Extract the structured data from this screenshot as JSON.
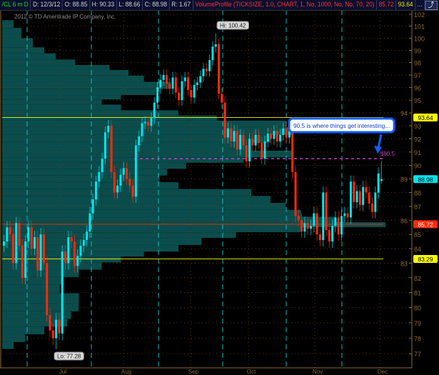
{
  "header": {
    "symbol": "/CL 6 m D",
    "date": "D: 12/3/12",
    "open": "O: 88.85",
    "high": "H: 90.33",
    "low": "L: 88.66",
    "close": "C: 88.98",
    "range": "R: 1.67",
    "study": "VolumeProfile (TICKSIZE, 1.0, CHART, 1, No, 1000, No, No, 70, 20)",
    "poc": "85.72",
    "va_high": "93.64",
    "more": "...",
    "style_icon": "chart-style-icon"
  },
  "copyright": "2012 © TD Ameritrade IP Company, Inc.",
  "annotation": {
    "callout": "90.5 is where things get interesting...",
    "level_label": "$90.5"
  },
  "colors": {
    "up": "#00e5ee",
    "down": "#ff2a0a",
    "profile": "#0c5656",
    "va_line": "#d8d800",
    "poc_line": "#e03010",
    "level_line": "#c040c0",
    "callout_border": "#1060ff",
    "grid": "#5a3a10",
    "axis": "#8a6a30"
  },
  "chart_data": {
    "type": "candlestick",
    "title": "",
    "y_scale": "log",
    "ylim": [
      76.7,
      102.3
    ],
    "y_ticks": [
      77,
      78,
      79,
      80,
      81,
      82,
      83,
      84,
      85,
      86,
      87,
      88,
      89,
      90,
      91,
      92,
      93,
      94,
      95,
      96,
      97,
      98,
      99,
      100,
      101,
      102
    ],
    "x_ticks": [
      "Jul",
      "Aug",
      "Sep",
      "Oct",
      "Nov",
      "Dec"
    ],
    "grid": true,
    "open": [
      84.2,
      84.5,
      85.5,
      85,
      83,
      85.8,
      84.2,
      82,
      84.5,
      85.5,
      84,
      84.8,
      82.5,
      85,
      83,
      79.5,
      78.5,
      78,
      79.2,
      78.3,
      83.8,
      83,
      84.8,
      84.5,
      82.8,
      83.5,
      84.2,
      84.6,
      85.2,
      86.5,
      87.5,
      88.8,
      89.5,
      90.5,
      92.5,
      93,
      89.5,
      88,
      88.5,
      89.3,
      89.8,
      89,
      88.5,
      87.7,
      91.5,
      92.2,
      93.2,
      93.3,
      93,
      93.6,
      94.8,
      96,
      96.6,
      97,
      96.3,
      95.9,
      96.8,
      95.6,
      95,
      96.5,
      96.8,
      95.8,
      95.2,
      96.2,
      96.4,
      96.9,
      97.5,
      97.3,
      98.2,
      99.3,
      99.5,
      95.5,
      94.8,
      92.1,
      92.8,
      91.8,
      92.6,
      91.2,
      92.3,
      91.5,
      90.3,
      92,
      91.5,
      92.3,
      91.7,
      90.5,
      91.8,
      92.4,
      92,
      92.6,
      91.8,
      92.3,
      92.8,
      92.1,
      92.6,
      89.5,
      86.3,
      86,
      85.2,
      85.8,
      85.4,
      85.6,
      86.5,
      85,
      84.6,
      88,
      85.3,
      84.5,
      85.6,
      86.2,
      85,
      86.3,
      86.5,
      86.2,
      88.8,
      87.3,
      88.1,
      87.1,
      88.4,
      88,
      87.2,
      86.6,
      88,
      88.85
    ],
    "close": [
      84.5,
      85.5,
      85,
      83,
      85.8,
      84.2,
      82,
      84.5,
      85.5,
      84,
      84.8,
      82.5,
      85,
      83,
      79.5,
      78.5,
      78,
      79.2,
      78.3,
      83.8,
      83,
      84.8,
      84.5,
      82.8,
      83.5,
      84.2,
      84.6,
      85.2,
      86.5,
      87.5,
      88.8,
      89.5,
      90.5,
      92.5,
      93,
      89.5,
      88,
      88.5,
      89.3,
      89.8,
      89,
      88.5,
      87.7,
      91.5,
      92.2,
      93.2,
      93.3,
      93,
      93.6,
      94.8,
      96,
      96.6,
      97,
      96.3,
      95.9,
      96.8,
      95.6,
      95,
      96.5,
      96.8,
      95.8,
      95.2,
      96.2,
      96.4,
      96.9,
      97.5,
      97.3,
      98.2,
      99.3,
      99.5,
      95.5,
      94.8,
      92.1,
      92.8,
      91.8,
      92.6,
      91.2,
      92.3,
      91.5,
      90.3,
      92,
      91.5,
      92.3,
      91.7,
      90.5,
      91.8,
      92.4,
      92,
      92.6,
      91.8,
      92.3,
      92.8,
      92.1,
      92.6,
      89.5,
      86.3,
      86,
      85.2,
      85.8,
      85.4,
      85.6,
      86.5,
      85,
      84.6,
      88,
      85.3,
      84.5,
      85.6,
      86.2,
      85,
      86.3,
      86.5,
      86.2,
      88.8,
      87.3,
      88.1,
      87.1,
      88.4,
      88,
      87.2,
      86.6,
      88,
      89.4,
      88.98
    ],
    "last_bar": {
      "open": 88.85,
      "high": 90.33,
      "low": 88.66,
      "close": 88.98
    },
    "extremes": {
      "high": 100.42,
      "high_label": "Hi: 100.42",
      "low": 77.28,
      "low_label": "Lo: 77.28"
    },
    "volume_profile": [
      [
        101.2,
        0.03
      ],
      [
        100.5,
        0.05
      ],
      [
        99.5,
        0.08
      ],
      [
        99,
        0.11
      ],
      [
        98.5,
        0.14
      ],
      [
        98,
        0.19
      ],
      [
        97.6,
        0.28
      ],
      [
        97.2,
        0.33
      ],
      [
        96.7,
        0.37
      ],
      [
        96.2,
        0.44
      ],
      [
        95.6,
        0.4
      ],
      [
        95.2,
        0.31
      ],
      [
        94.9,
        0.26
      ],
      [
        94.4,
        0.31
      ],
      [
        94,
        0.46
      ],
      [
        93.6,
        0.56
      ],
      [
        93.2,
        0.74
      ],
      [
        92.6,
        0.76
      ],
      [
        92,
        0.7
      ],
      [
        91.4,
        0.65
      ],
      [
        90.8,
        0.76
      ],
      [
        90.4,
        0.63
      ],
      [
        90,
        0.48
      ],
      [
        89.5,
        0.43
      ],
      [
        89,
        0.41
      ],
      [
        88.5,
        0.46
      ],
      [
        88,
        0.65
      ],
      [
        87.5,
        0.7
      ],
      [
        87,
        0.74
      ],
      [
        86.5,
        0.78
      ],
      [
        86,
        0.87
      ],
      [
        85.72,
        1.0
      ],
      [
        85.3,
        0.78
      ],
      [
        85,
        0.61
      ],
      [
        84.5,
        0.52
      ],
      [
        84,
        0.46
      ],
      [
        83.6,
        0.37
      ],
      [
        83.3,
        0.31
      ],
      [
        82.8,
        0.26
      ],
      [
        82.3,
        0.2
      ],
      [
        81.8,
        0.16
      ],
      [
        81.3,
        0.15
      ],
      [
        80.6,
        0.2
      ],
      [
        80,
        0.2
      ],
      [
        79.5,
        0.18
      ],
      [
        79,
        0.17
      ],
      [
        78.5,
        0.11
      ],
      [
        78,
        0.06
      ],
      [
        77.5,
        0.03
      ]
    ],
    "levels": [
      {
        "name": "value-area-high",
        "price": 93.64,
        "label": "93.64",
        "color": "#d8d800",
        "label_bg": "#ffff00",
        "label_fg": "#000"
      },
      {
        "name": "point-of-control",
        "price": 85.72,
        "label": "85.72",
        "color": "#e03010",
        "label_bg": "#ff2a0a",
        "label_fg": "#fff"
      },
      {
        "name": "value-area-low",
        "price": 83.29,
        "label": "83.29",
        "color": "#d8d800",
        "label_bg": "#ffff00",
        "label_fg": "#000"
      },
      {
        "name": "last-price",
        "price": 88.98,
        "label": "88.98",
        "color": null,
        "label_bg": "#00e5ee",
        "label_fg": "#000"
      }
    ],
    "drawn_level": 90.5
  }
}
